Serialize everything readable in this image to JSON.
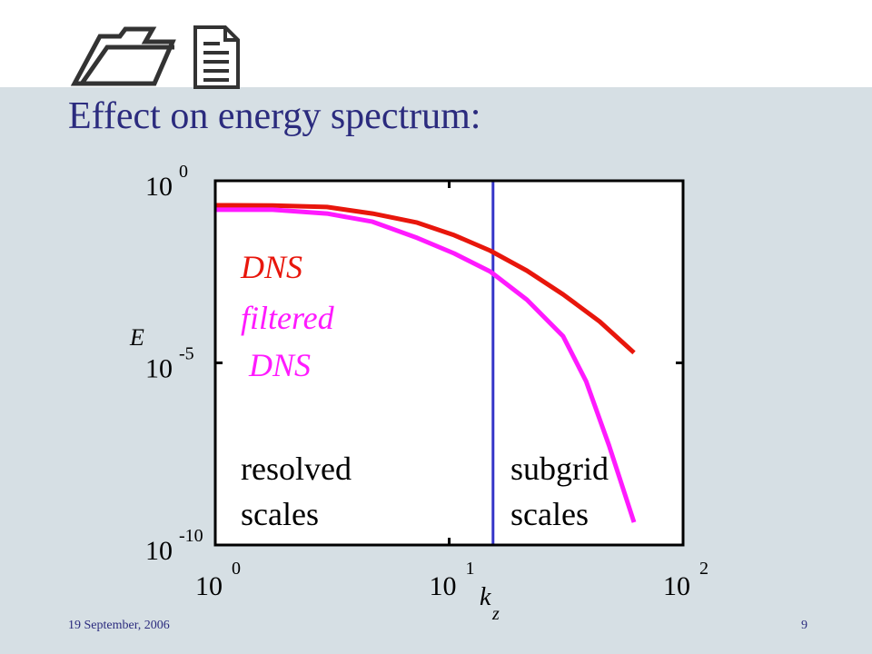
{
  "slide": {
    "title": "Effect on energy spectrum:",
    "date": "19 September, 2006",
    "page": "9"
  },
  "chart_data": {
    "type": "line",
    "xlabel": "k",
    "xlabel_subscript": "z",
    "ylabel": "E",
    "xscale": "log",
    "yscale": "log",
    "xlim": [
      1,
      100
    ],
    "ylim": [
      1e-10,
      1
    ],
    "xticks": [
      {
        "value": 1,
        "label": "10",
        "exponent": "0"
      },
      {
        "value": 10,
        "label": "10",
        "exponent": "1"
      },
      {
        "value": 100,
        "label": "10",
        "exponent": "2"
      }
    ],
    "yticks": [
      {
        "value": 1,
        "label": "10",
        "exponent": "0"
      },
      {
        "value": 1e-05,
        "label": "10",
        "exponent": "-5"
      },
      {
        "value": 1e-10,
        "label": "10",
        "exponent": "-10"
      }
    ],
    "series": [
      {
        "name": "DNS",
        "color": "#e8160c",
        "x": [
          1,
          1.76,
          3.0,
          4.7,
          7.3,
          10.5,
          15.0,
          21.5,
          30.7,
          44,
          61.7
        ],
        "values": [
          0.212,
          0.21,
          0.19,
          0.126,
          0.071,
          0.032,
          0.012,
          0.0034,
          0.00076,
          0.000136,
          1.9e-05
        ]
      },
      {
        "name": "filtered DNS",
        "color": "#ff1aff",
        "x": [
          1,
          1.76,
          3.0,
          4.7,
          7.3,
          10.5,
          15.0,
          21.5,
          30.7,
          38.5,
          48.2,
          61.7
        ],
        "values": [
          0.16,
          0.16,
          0.126,
          0.075,
          0.027,
          0.0101,
          0.0032,
          0.00054,
          5.4e-05,
          3.1e-06,
          5.5e-08,
          4.2e-10
        ]
      }
    ],
    "vlines": [
      {
        "x": 15.4,
        "color": "#3535c8"
      }
    ],
    "annotations": [
      {
        "lines": [
          "resolved",
          "scales"
        ]
      },
      {
        "lines": [
          "subgrid",
          "scales"
        ]
      }
    ]
  }
}
